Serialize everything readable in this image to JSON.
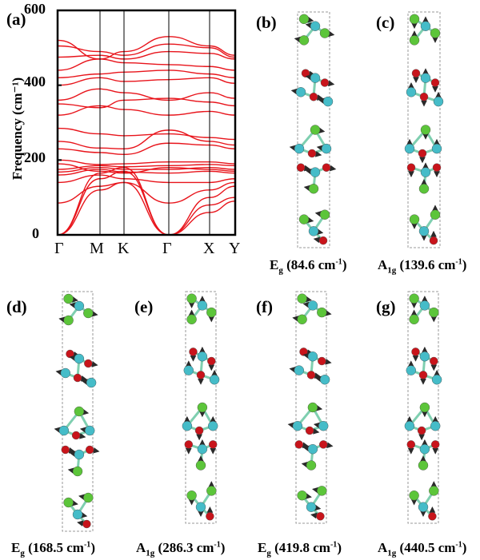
{
  "chart_data": {
    "type": "line",
    "panel_label": "(a)",
    "ylabel": "Frequency (cm⁻¹)",
    "ylim": [
      0,
      600
    ],
    "yticks": [
      "0",
      "200",
      "400",
      "600"
    ],
    "xticks": [
      "Γ",
      "M",
      "K",
      "Γ",
      "X",
      "Y"
    ],
    "series_color": "#e8141b",
    "series": [
      {
        "y": [
          0,
          120,
          140,
          0,
          60,
          90
        ]
      },
      {
        "y": [
          0,
          150,
          170,
          0,
          80,
          100
        ]
      },
      {
        "y": [
          0,
          165,
          180,
          0,
          100,
          130
        ]
      },
      {
        "y": [
          85,
          130,
          140,
          85,
          120,
          140
        ]
      },
      {
        "y": [
          140,
          160,
          150,
          140,
          140,
          150
        ]
      },
      {
        "y": [
          160,
          175,
          168,
          165,
          170,
          165
        ]
      },
      {
        "y": [
          168,
          180,
          175,
          175,
          180,
          175
        ]
      },
      {
        "y": [
          175,
          185,
          182,
          185,
          188,
          185
        ]
      },
      {
        "y": [
          190,
          170,
          165,
          180,
          175,
          170
        ]
      },
      {
        "y": [
          200,
          188,
          190,
          195,
          195,
          190
        ]
      },
      {
        "y": [
          230,
          220,
          215,
          245,
          240,
          230
        ]
      },
      {
        "y": [
          250,
          232,
          230,
          280,
          250,
          240
        ]
      },
      {
        "y": [
          285,
          270,
          265,
          270,
          260,
          255
        ]
      },
      {
        "y": [
          320,
          345,
          335,
          320,
          330,
          320
        ]
      },
      {
        "y": [
          350,
          340,
          360,
          365,
          355,
          345
        ]
      },
      {
        "y": [
          360,
          390,
          380,
          360,
          380,
          365
        ]
      },
      {
        "y": [
          400,
          420,
          410,
          415,
          420,
          405
        ]
      },
      {
        "y": [
          420,
          430,
          435,
          440,
          430,
          420
        ]
      },
      {
        "y": [
          440,
          470,
          460,
          455,
          450,
          440
        ]
      },
      {
        "y": [
          475,
          480,
          470,
          490,
          485,
          470
        ]
      },
      {
        "y": [
          505,
          490,
          480,
          510,
          500,
          475
        ]
      },
      {
        "y": [
          520,
          470,
          490,
          530,
          505,
          480
        ]
      }
    ]
  },
  "panels": [
    {
      "label": "(b)",
      "mode": "E",
      "mode_sub": "g",
      "freq": "(84.6 cm",
      "unit_sup": "-1",
      "close": ")"
    },
    {
      "label": "(c)",
      "mode": "A",
      "mode_sub": "1g",
      "freq": "(139.6 cm",
      "unit_sup": "-1",
      "close": ")"
    },
    {
      "label": "(d)",
      "mode": "E",
      "mode_sub": "g",
      "freq": "(168.5 cm",
      "unit_sup": "-1",
      "close": ")"
    },
    {
      "label": "(e)",
      "mode": "A",
      "mode_sub": "1g",
      "freq": "(286.3 cm",
      "unit_sup": "-1",
      "close": ")"
    },
    {
      "label": "(f)",
      "mode": "E",
      "mode_sub": "g",
      "freq": "(419.8 cm",
      "unit_sup": "-1",
      "close": ")"
    },
    {
      "label": "(g)",
      "mode": "A",
      "mode_sub": "1g",
      "freq": "(440.5 cm",
      "unit_sup": "-1",
      "close": ")"
    }
  ],
  "colors": {
    "band": "#e8141b",
    "atom_green": "#5cc53a",
    "atom_cyan": "#45bcc8",
    "atom_red": "#c8141b",
    "arrow": "#2a2a2a",
    "cell_border": "#999999"
  }
}
